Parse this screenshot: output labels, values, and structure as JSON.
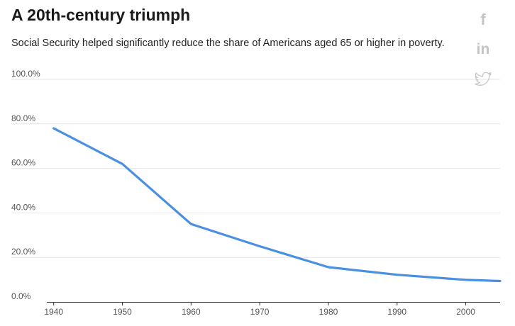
{
  "header": {
    "title": "A 20th-century triumph",
    "subtitle": "Social Security helped significantly reduce the share of Americans aged 65 or higher in poverty."
  },
  "share": {
    "facebook_glyph": "f",
    "linkedin_glyph": "in",
    "icons": [
      "facebook-icon",
      "linkedin-icon",
      "twitter-icon"
    ],
    "icon_color": "#c4c4c4"
  },
  "chart_data": {
    "type": "line",
    "title": "A 20th-century triumph",
    "subtitle": "Social Security helped significantly reduce the share of Americans aged 65 or higher in poverty.",
    "xlabel": "",
    "ylabel": "",
    "x_ticks": [
      "1940",
      "1950",
      "1960",
      "1970",
      "1980",
      "1990",
      "2000"
    ],
    "y_ticks": [
      "0.0%",
      "20.0%",
      "40.0%",
      "60.0%",
      "80.0%",
      "100.0%"
    ],
    "xlim": [
      1939,
      2005
    ],
    "ylim": [
      0,
      100
    ],
    "grid": true,
    "legend": "none",
    "series": [
      {
        "color": "#4a90e2",
        "x": [
          1940,
          1950,
          1960,
          1970,
          1980,
          1990,
          2000,
          2005
        ],
        "y": [
          78,
          62,
          35,
          25,
          15.6,
          12.2,
          9.9,
          9.4
        ]
      }
    ]
  }
}
